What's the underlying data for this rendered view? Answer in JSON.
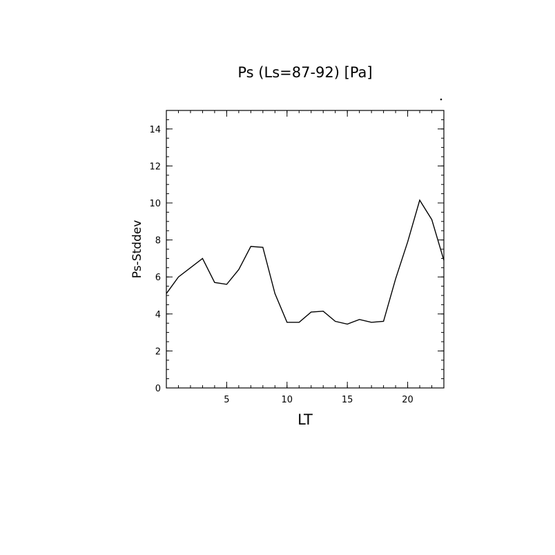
{
  "chart_data": {
    "type": "line",
    "title": "Ps (Ls=87-92) [Pa]",
    "xlabel": "LT",
    "ylabel": "Ps-Stddev",
    "xlim": [
      0,
      23
    ],
    "ylim": [
      0,
      15
    ],
    "xticks": [
      5,
      10,
      15,
      20
    ],
    "yticks": [
      0,
      2,
      4,
      6,
      8,
      10,
      12,
      14
    ],
    "grid": false,
    "series": [
      {
        "x": [
          0,
          1,
          2,
          3,
          4,
          5,
          6,
          7,
          8,
          9,
          10,
          11,
          12,
          13,
          14,
          15,
          16,
          17,
          18,
          19,
          20,
          21,
          22,
          23
        ],
        "values": [
          5.1,
          6.0,
          6.5,
          7.0,
          5.7,
          5.6,
          6.4,
          7.65,
          7.6,
          5.1,
          3.55,
          3.55,
          4.1,
          4.15,
          3.6,
          3.45,
          3.7,
          3.55,
          3.6,
          5.9,
          7.9,
          10.15,
          9.1,
          6.9
        ]
      }
    ]
  }
}
